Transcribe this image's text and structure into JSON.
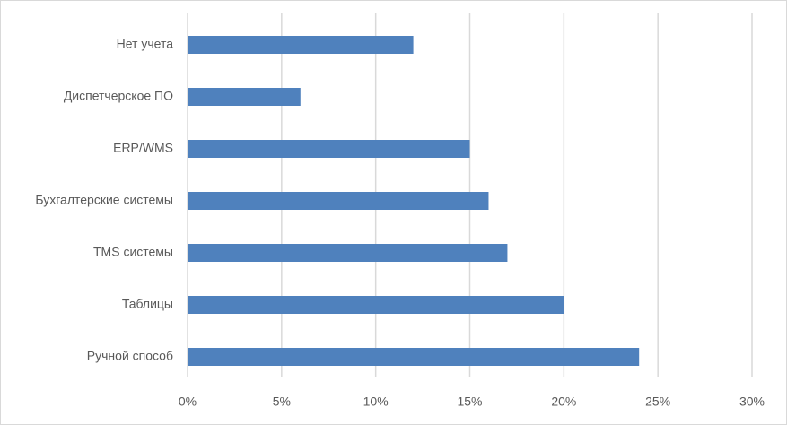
{
  "chart_data": {
    "type": "bar",
    "orientation": "horizontal",
    "categories": [
      "Нет учета",
      "Диспетчерское ПО",
      "ERP/WMS",
      "Бухгалтерские системы",
      "TMS системы",
      "Таблицы",
      "Ручной способ"
    ],
    "values": [
      12,
      6,
      15,
      16,
      17,
      20,
      24
    ],
    "color": "#4f81bd",
    "xlim": [
      0,
      30
    ],
    "xticks": [
      {
        "value": 0,
        "label": "0%"
      },
      {
        "value": 5,
        "label": "5%"
      },
      {
        "value": 10,
        "label": "10%"
      },
      {
        "value": 15,
        "label": "15%"
      },
      {
        "value": 20,
        "label": "20%"
      },
      {
        "value": 25,
        "label": "25%"
      },
      {
        "value": 30,
        "label": "30%"
      }
    ],
    "grid": true
  }
}
